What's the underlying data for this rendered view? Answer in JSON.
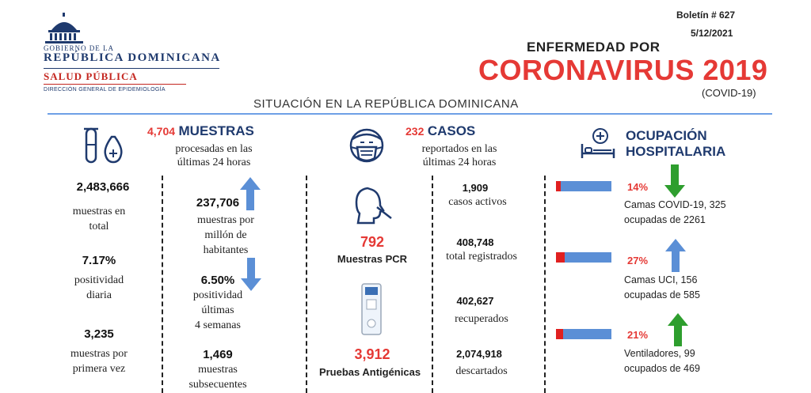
{
  "header": {
    "logo": {
      "line1": "GOBIERNO DE LA",
      "line2": "REPÚBLICA DOMINICANA",
      "line3": "SALUD PÚBLICA",
      "line4": "DIRECCIÓN GENERAL DE EPIDEMIOLOGÍA"
    },
    "bulletin": "Boletín # 627",
    "date": "5/12/2021",
    "title_small": "ENFERMEDAD POR",
    "title_big": "CORONAVIRUS 2019",
    "title_paren": "(COVID-19)",
    "subtitle": "SITUACIÓN EN LA REPÚBLICA DOMINICANA"
  },
  "muestras": {
    "header_num": "4,704",
    "header_word": "MUESTRAS",
    "header_sub1": "procesadas en las",
    "header_sub2": "últimas 24 horas",
    "left": [
      {
        "value": "2,483,666",
        "label1": "muestras en",
        "label2": "total"
      },
      {
        "value": "7.17%",
        "label1": "positividad",
        "label2": "diaria"
      },
      {
        "value": "3,235",
        "label1": "muestras por",
        "label2": "primera vez"
      }
    ],
    "right": [
      {
        "value": "237,706",
        "label1": "muestras por",
        "label2": "millón de",
        "label3": "habitantes",
        "arrow": "up"
      },
      {
        "value": "6.50%",
        "label1": "positividad",
        "label2": "últimas",
        "label3": "4 semanas",
        "arrow": "down"
      },
      {
        "value": "1,469",
        "label1": "muestras",
        "label2": "subsecuentes"
      }
    ]
  },
  "casos": {
    "header_num": "232",
    "header_word": "CASOS",
    "header_sub1": "reportados en las",
    "header_sub2": "últimas 24 horas",
    "pcr": {
      "value": "792",
      "label": "Muestras PCR"
    },
    "antigen": {
      "value": "3,912",
      "label": "Pruebas Antigénicas"
    },
    "right": [
      {
        "value": "1,909",
        "label": "casos activos"
      },
      {
        "value": "408,748",
        "label": "total registrados"
      },
      {
        "value": "402,627",
        "label": "recuperados"
      },
      {
        "value": "2,074,918",
        "label": "descartados"
      }
    ]
  },
  "ocupacion": {
    "header_line1": "OCUPACIÓN",
    "header_line2": "HOSPITALARIA",
    "items": [
      {
        "pct": "14%",
        "fraction": 0.14,
        "label1": "Camas COVID-19,  325",
        "label2": "ocupadas de 2261",
        "arrow": "down",
        "arrow_color": "#2e9e2e"
      },
      {
        "pct": "27%",
        "fraction": 0.27,
        "label1": "Camas UCI,  156",
        "label2": "ocupadas de 585",
        "arrow": "up",
        "arrow_color": "#5b8fd6"
      },
      {
        "pct": "21%",
        "fraction": 0.21,
        "label1": "Ventiladores, 99",
        "label2": "ocupados de 469",
        "arrow": "up",
        "arrow_color": "#2e9e2e"
      }
    ]
  },
  "colors": {
    "red": "#e53935",
    "navy": "#1f3a6e",
    "blue": "#5b8fd6",
    "green": "#2e9e2e"
  }
}
